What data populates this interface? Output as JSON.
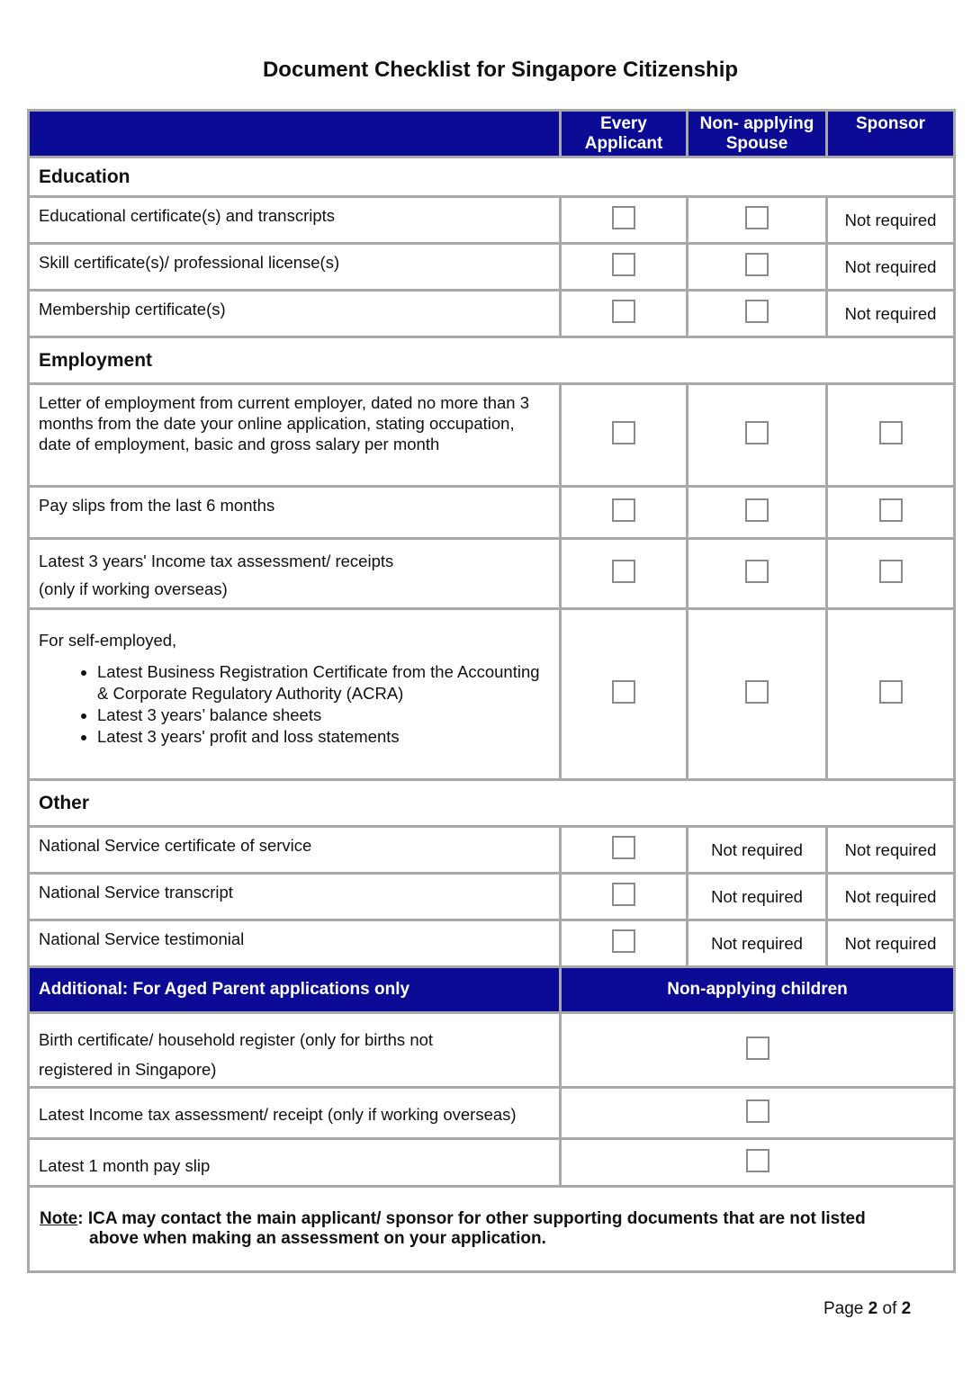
{
  "title": "Document Checklist for Singapore Citizenship",
  "columns": [
    "",
    "Every Applicant",
    "Non- applying Spouse",
    "Sponsor"
  ],
  "colors": {
    "header_bg": "#0b0b96",
    "border": "#a9a9a9"
  },
  "not_required_label": "Not required",
  "sections": [
    {
      "heading": "Education",
      "rows": [
        {
          "label": "Educational certificate(s) and transcripts",
          "cells": [
            "checkbox",
            "checkbox",
            "Not required"
          ]
        },
        {
          "label": "Skill certificate(s)/ professional license(s)",
          "cells": [
            "checkbox",
            "checkbox",
            "Not required"
          ]
        },
        {
          "label": "Membership certificate(s)",
          "cells": [
            "checkbox",
            "checkbox",
            "Not required"
          ]
        }
      ]
    },
    {
      "heading": "Employment",
      "rows": [
        {
          "label": "Letter of employment from current employer, dated no more than 3 months from the date your online application, stating occupation, date of employment, basic and gross salary per month",
          "cells": [
            "checkbox",
            "checkbox",
            "checkbox"
          ]
        },
        {
          "label": "Pay slips from the last 6 months",
          "cells": [
            "checkbox",
            "checkbox",
            "checkbox"
          ]
        },
        {
          "label": "Latest 3 years' Income tax assessment/ receipts",
          "sub": "(only if working overseas)",
          "cells": [
            "checkbox",
            "checkbox",
            "checkbox"
          ]
        },
        {
          "label": "For self-employed,",
          "bullets": [
            "Latest Business Registration Certificate from the Accounting & Corporate Regulatory Authority (ACRA)",
            "Latest 3 years’ balance sheets",
            "Latest 3 years' profit and loss statements"
          ],
          "cells": [
            "checkbox",
            "checkbox",
            "checkbox"
          ]
        }
      ]
    },
    {
      "heading": "Other",
      "rows": [
        {
          "label": "National Service certificate of service",
          "cells": [
            "checkbox",
            "Not required",
            "Not required"
          ]
        },
        {
          "label": "National Service transcript",
          "cells": [
            "checkbox",
            "Not required",
            "Not required"
          ]
        },
        {
          "label": "National Service testimonial",
          "cells": [
            "checkbox",
            "Not required",
            "Not required"
          ]
        }
      ]
    }
  ],
  "additional": {
    "heading": "Additional: For Aged Parent applications only",
    "column": "Non-applying children",
    "rows": [
      {
        "label": "Birth certificate/ household register (only for births not",
        "sub": "registered in Singapore)"
      },
      {
        "label": "Latest Income tax assessment/ receipt (only if working overseas)"
      },
      {
        "label": "Latest 1 month pay slip"
      }
    ]
  },
  "note": {
    "label": "Note",
    "text": ": ICA may contact the main applicant/ sponsor for other supporting documents that are not listed",
    "text2": "above when making an assessment on your application."
  },
  "footer": {
    "prefix": "Page ",
    "current": "2",
    "of": " of ",
    "total": "2"
  }
}
